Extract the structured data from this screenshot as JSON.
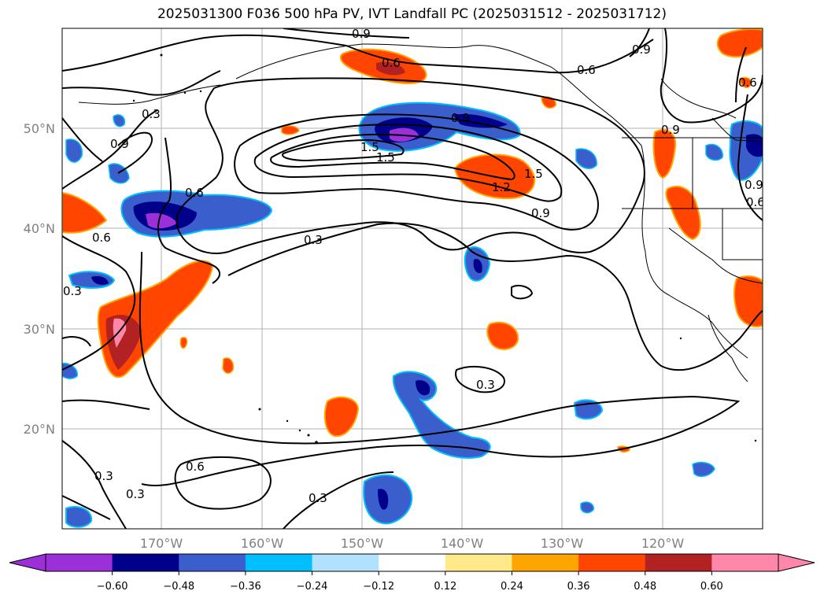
{
  "title": "2025031300 F036 500 hPa PV, IVT Landfall PC (2025031512 - 2025031712)",
  "lat_labels": [
    "50°N",
    "40°N",
    "30°N",
    "20°N"
  ],
  "lon_labels": [
    "170°W",
    "160°W",
    "150°W",
    "140°W",
    "130°W",
    "120°W"
  ],
  "contour_labels": [
    "0.9",
    "0.6",
    "0.9",
    "0.6",
    "0.3",
    "0.6",
    "0.9",
    "0.9",
    "1.5",
    "1.5",
    "0.9",
    "1.5",
    "1.2",
    "0.9",
    "0.6",
    "0.6",
    "0.6",
    "0.3",
    "0.3",
    "0.3",
    "0.6",
    "0.3",
    "0.3",
    "0.3",
    "0.9"
  ],
  "colorbar": {
    "ticks": [
      "−0.60",
      "−0.48",
      "−0.36",
      "−0.24",
      "−0.12",
      "0.12",
      "0.24",
      "0.36",
      "0.48",
      "0.60"
    ],
    "colors": [
      "#9b30d9",
      "#00008b",
      "#3a5fcd",
      "#00bfff",
      "#b0e2ff",
      "#ffffff",
      "#ffe98a",
      "#ffa500",
      "#ff4500",
      "#b22222",
      "#ff88aa",
      "#ff88aa"
    ]
  }
}
